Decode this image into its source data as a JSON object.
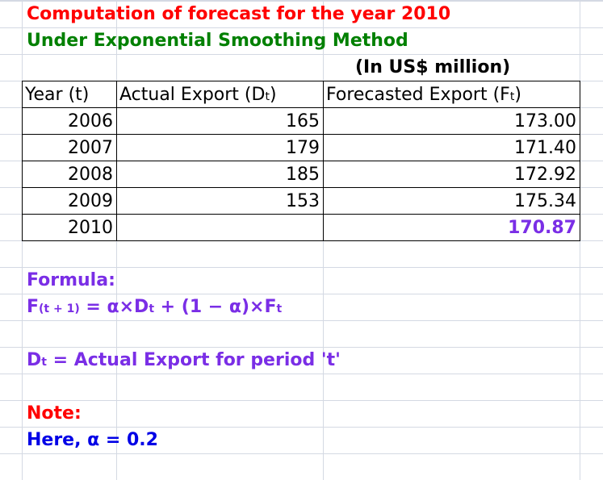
{
  "title": "Computation of forecast for the year 2010",
  "subtitle": "Under Exponential Smoothing Method",
  "unit": "(In US$ million)",
  "table": {
    "header": [
      [
        "Year (t)"
      ],
      [
        "Actual Export (D",
        "t",
        ")"
      ],
      [
        "Forecasted Export (F",
        "t",
        ")"
      ]
    ],
    "rows": [
      [
        "2006",
        "165",
        "173.00"
      ],
      [
        "2007",
        "179",
        "171.40"
      ],
      [
        "2008",
        "185",
        "172.92"
      ],
      [
        "2009",
        "153",
        "175.34"
      ],
      [
        "2010",
        null,
        "170.87"
      ]
    ]
  },
  "formula": {
    "label": "Formula:",
    "expression": [
      "F",
      "(t + 1)",
      " = α×D",
      "t",
      " + (1 − α)×F",
      "t"
    ]
  },
  "definition": [
    "D",
    "t",
    " = Actual Export for period 't'"
  ],
  "note": {
    "label": "Note:",
    "text": "Here, α = 0.2"
  }
}
